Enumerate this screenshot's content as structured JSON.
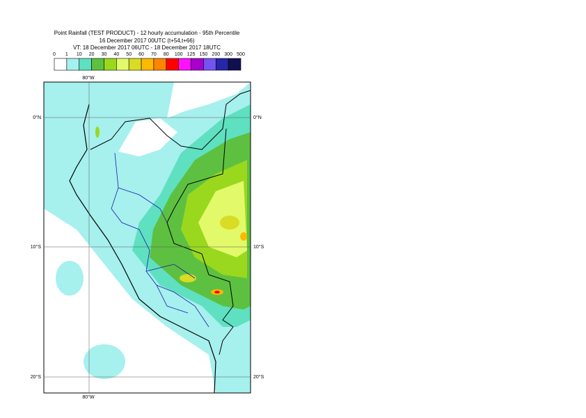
{
  "header": {
    "lines": [
      "Point Rainfall (TEST PRODUCT) - 12 hourly accumulation - 95th Percentile",
      "16 December 2017 00UTC (t+54,t+66)",
      "VT: 18 December 2017 06UTC - 18 December 2017 18UTC"
    ]
  },
  "legend": {
    "labels": [
      0,
      1,
      10,
      20,
      30,
      40,
      50,
      60,
      70,
      80,
      100,
      125,
      150,
      200,
      300,
      500
    ],
    "colors": [
      "#ffffff",
      "#a6f0ee",
      "#5fe0c0",
      "#5ec040",
      "#9ad81e",
      "#e2fa6a",
      "#d8dc24",
      "#ffb800",
      "#ff8400",
      "#ff0000",
      "#ff10ff",
      "#a800cc",
      "#7454ee",
      "#2626a8",
      "#101050"
    ]
  },
  "map": {
    "lon_label": "80°W",
    "lat_labels": [
      "0°N",
      "10°S",
      "20°S"
    ]
  }
}
